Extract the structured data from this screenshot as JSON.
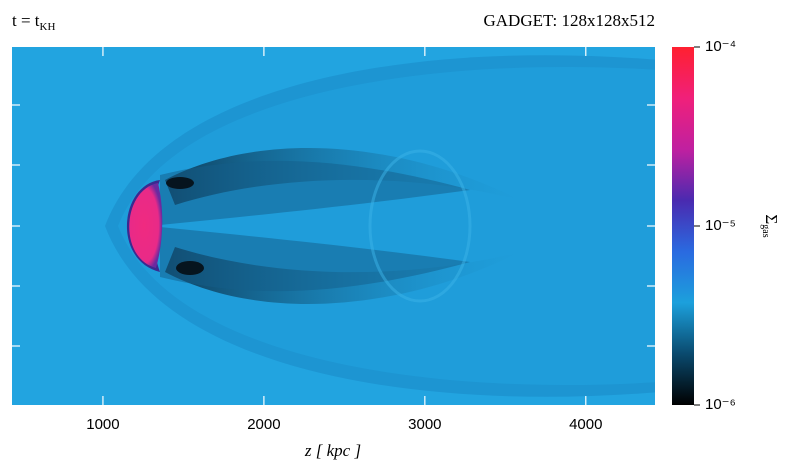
{
  "chart_data": {
    "type": "image",
    "title_left": "t = t",
    "title_left_subscript": "KH",
    "title_right": "GADGET: 128x128x512",
    "xlabel": "z [ kpc ]",
    "xlim": [
      435,
      4430
    ],
    "xticks": [
      1000,
      2000,
      3000,
      4000
    ],
    "colorbar": {
      "label": "Σ",
      "label_subscript": "gas",
      "log": true,
      "lim": [
        1e-06,
        0.0001
      ],
      "ticks": [
        {
          "value": 1e-06,
          "label": "10⁻⁶"
        },
        {
          "value": 1e-05,
          "label": "10⁻⁵"
        },
        {
          "value": 0.0001,
          "label": "10⁻⁴"
        }
      ],
      "colormap": [
        "#000000",
        "#0a4a6e",
        "#1ca0dc",
        "#2a6ae0",
        "#4a2ab0",
        "#c020a0",
        "#f0207a",
        "#ff2030"
      ]
    }
  }
}
